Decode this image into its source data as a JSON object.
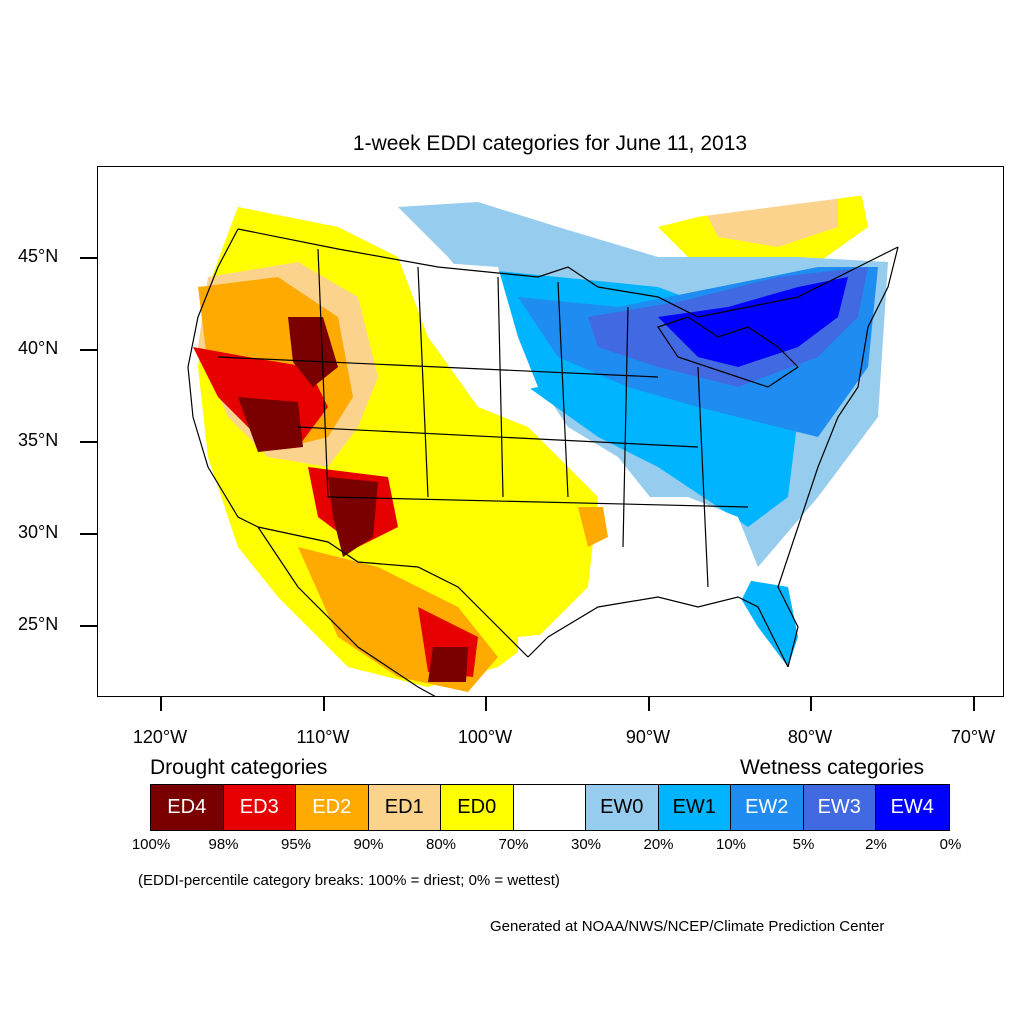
{
  "title": "1-week EDDI categories for June 11, 2013",
  "lat_labels": [
    "45°N",
    "40°N",
    "35°N",
    "30°N",
    "25°N"
  ],
  "lon_labels": [
    "120°W",
    "110°W",
    "100°W",
    "90°W",
    "80°W",
    "70°W"
  ],
  "legend": {
    "drought_heading": "Drought categories",
    "wetness_heading": "Wetness categories",
    "categories": [
      {
        "label": "ED4",
        "color": "#7a0000",
        "text_color": "#ffffff"
      },
      {
        "label": "ED3",
        "color": "#e60000",
        "text_color": "#ffffff"
      },
      {
        "label": "ED2",
        "color": "#ffaa00",
        "text_color": "#ffffff"
      },
      {
        "label": "ED1",
        "color": "#fcd38c",
        "text_color": "#000000"
      },
      {
        "label": "ED0",
        "color": "#ffff00",
        "text_color": "#000000"
      },
      {
        "label": "",
        "color": "#ffffff",
        "text_color": "#000000"
      },
      {
        "label": "EW0",
        "color": "#96cdef",
        "text_color": "#000000"
      },
      {
        "label": "EW1",
        "color": "#00b4ff",
        "text_color": "#000000"
      },
      {
        "label": "EW2",
        "color": "#1e8cf0",
        "text_color": "#ffffff"
      },
      {
        "label": "EW3",
        "color": "#4169e1",
        "text_color": "#ffffff"
      },
      {
        "label": "EW4",
        "color": "#0000ff",
        "text_color": "#ffffff"
      }
    ],
    "breaks": [
      "100%",
      "98%",
      "95%",
      "90%",
      "80%",
      "70%",
      "30%",
      "20%",
      "10%",
      "5%",
      "2%",
      "0%"
    ]
  },
  "note": "(EDDI-percentile category breaks: 100% = driest; 0% = wettest)",
  "credit": "Generated at NOAA/NWS/NCEP/Climate Prediction Center"
}
